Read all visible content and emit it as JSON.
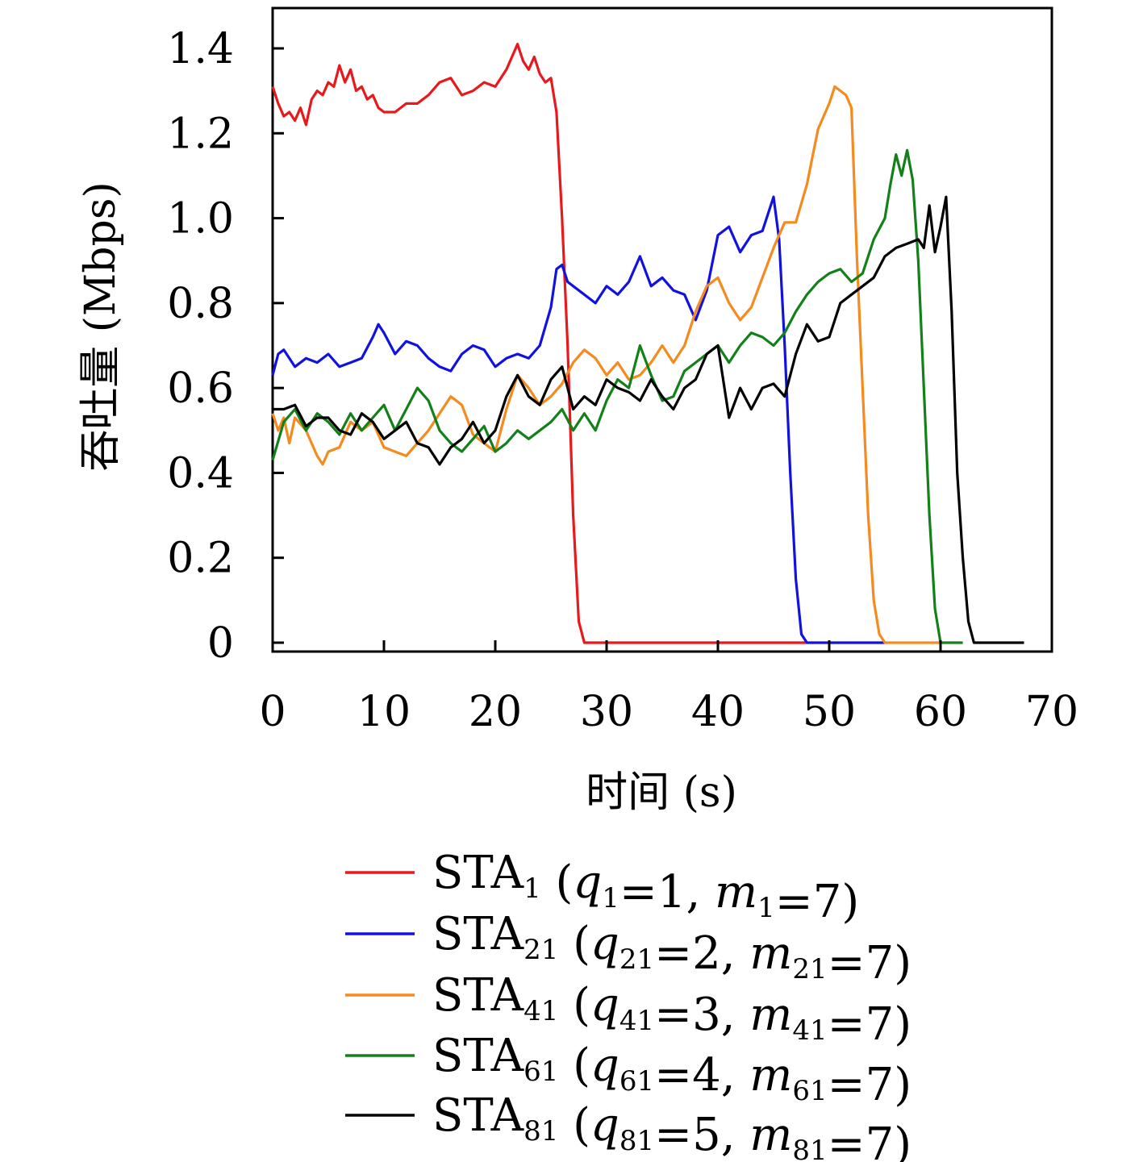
{
  "chart_data": {
    "type": "line",
    "xlabel": "时间 (s)",
    "ylabel": "吞吐量 (Mbps)",
    "xlim": [
      0,
      70
    ],
    "ylim": [
      0,
      1.5
    ],
    "xticks": [
      "0",
      "10",
      "20",
      "30",
      "40",
      "50",
      "60",
      "70"
    ],
    "yticks": [
      "0",
      "0.2",
      "0.4",
      "0.6",
      "0.8",
      "1.0",
      "1.2",
      "1.4"
    ],
    "grid": false,
    "legend_position": "bottom",
    "series": [
      {
        "name": "STA1 (q1=1, m1=7)",
        "legend": {
          "base": "STA",
          "sub": "1",
          "q": "q",
          "qsub": "1",
          "qval": "=1, ",
          "m": "m",
          "msub": "1",
          "mval": "=7)"
        },
        "color": "#e8191c",
        "x": [
          0,
          0.5,
          1,
          1.5,
          2,
          2.5,
          3,
          3.5,
          4,
          4.5,
          5,
          5.5,
          6,
          6.5,
          7,
          7.5,
          8,
          8.5,
          9,
          9.5,
          10,
          11,
          12,
          13,
          14,
          15,
          16,
          17,
          18,
          19,
          20,
          21,
          21.5,
          22,
          22.5,
          23,
          23.5,
          24,
          24.5,
          25,
          25.5,
          26,
          26.5,
          27,
          27.5,
          28,
          30,
          40,
          48
        ],
        "y": [
          1.31,
          1.27,
          1.24,
          1.25,
          1.23,
          1.26,
          1.22,
          1.28,
          1.3,
          1.29,
          1.32,
          1.31,
          1.36,
          1.32,
          1.35,
          1.3,
          1.31,
          1.28,
          1.29,
          1.26,
          1.25,
          1.25,
          1.27,
          1.27,
          1.29,
          1.32,
          1.33,
          1.29,
          1.3,
          1.32,
          1.31,
          1.35,
          1.38,
          1.41,
          1.37,
          1.35,
          1.38,
          1.34,
          1.32,
          1.33,
          1.25,
          1.0,
          0.7,
          0.3,
          0.05,
          0.0,
          0.0,
          0.0,
          0.0
        ]
      },
      {
        "name": "STA21 (q21=2, m21=7)",
        "legend": {
          "base": "STA",
          "sub": "21",
          "q": "q",
          "qsub": "21",
          "qval": "=2, ",
          "m": "m",
          "msub": "21",
          "mval": "=7)"
        },
        "color": "#1212e0",
        "x": [
          0,
          0.5,
          1,
          2,
          3,
          4,
          5,
          6,
          7,
          8,
          9,
          9.5,
          10,
          11,
          12,
          13,
          14,
          15,
          16,
          17,
          18,
          19,
          20,
          21,
          22,
          23,
          24,
          25,
          25.5,
          26,
          26.5,
          27,
          28,
          29,
          30,
          31,
          32,
          33,
          34,
          35,
          36,
          37,
          38,
          39,
          40,
          41,
          42,
          43,
          44,
          45,
          45.5,
          46,
          46.5,
          47,
          47.5,
          48,
          50,
          55
        ],
        "y": [
          0.63,
          0.68,
          0.69,
          0.65,
          0.67,
          0.66,
          0.68,
          0.65,
          0.66,
          0.67,
          0.72,
          0.75,
          0.73,
          0.68,
          0.71,
          0.7,
          0.67,
          0.65,
          0.64,
          0.68,
          0.7,
          0.69,
          0.65,
          0.67,
          0.68,
          0.67,
          0.7,
          0.79,
          0.88,
          0.89,
          0.85,
          0.84,
          0.82,
          0.8,
          0.84,
          0.82,
          0.85,
          0.91,
          0.84,
          0.86,
          0.83,
          0.82,
          0.76,
          0.83,
          0.96,
          0.98,
          0.92,
          0.96,
          0.97,
          1.05,
          0.95,
          0.7,
          0.4,
          0.15,
          0.02,
          0.0,
          0.0,
          0.0
        ]
      },
      {
        "name": "STA41 (q41=3, m41=7)",
        "legend": {
          "base": "STA",
          "sub": "41",
          "q": "q",
          "qsub": "41",
          "qval": "=3, ",
          "m": "m",
          "msub": "41",
          "mval": "=7)"
        },
        "color": "#f58a1f",
        "x": [
          0,
          0.5,
          1,
          1.5,
          2,
          3,
          4,
          4.5,
          5,
          6,
          7,
          8,
          9,
          10,
          11,
          12,
          13,
          14,
          15,
          16,
          17,
          18,
          19,
          20,
          21,
          22,
          23,
          24,
          25,
          26,
          27,
          28,
          29,
          30,
          31,
          32,
          33,
          34,
          35,
          36,
          37,
          38,
          39,
          40,
          41,
          42,
          43,
          44,
          45,
          46,
          47,
          48,
          49,
          50,
          50.5,
          51,
          51.5,
          52,
          52.5,
          53,
          53.5,
          54,
          54.5,
          55,
          55.5,
          56,
          58,
          60
        ],
        "y": [
          0.54,
          0.5,
          0.53,
          0.47,
          0.53,
          0.5,
          0.44,
          0.42,
          0.45,
          0.46,
          0.52,
          0.5,
          0.52,
          0.46,
          0.45,
          0.44,
          0.47,
          0.5,
          0.54,
          0.58,
          0.56,
          0.49,
          0.47,
          0.45,
          0.55,
          0.63,
          0.6,
          0.56,
          0.58,
          0.61,
          0.66,
          0.69,
          0.67,
          0.63,
          0.66,
          0.62,
          0.63,
          0.66,
          0.7,
          0.66,
          0.7,
          0.78,
          0.84,
          0.86,
          0.8,
          0.76,
          0.79,
          0.86,
          0.93,
          0.99,
          0.99,
          1.08,
          1.21,
          1.27,
          1.31,
          1.3,
          1.29,
          1.26,
          0.9,
          0.6,
          0.3,
          0.1,
          0.02,
          0.0,
          0.0,
          0.0,
          0.0,
          0.0
        ]
      },
      {
        "name": "STA61 (q61=4, m61=7)",
        "legend": {
          "base": "STA",
          "sub": "61",
          "q": "q",
          "qsub": "61",
          "qval": "=4, ",
          "m": "m",
          "msub": "61",
          "mval": "=7)"
        },
        "color": "#13801a",
        "x": [
          0,
          1,
          2,
          3,
          4,
          5,
          6,
          7,
          8,
          9,
          10,
          11,
          12,
          13,
          14,
          15,
          16,
          17,
          18,
          19,
          20,
          21,
          22,
          23,
          24,
          25,
          26,
          27,
          28,
          29,
          30,
          31,
          32,
          33,
          34,
          35,
          36,
          37,
          38,
          39,
          40,
          41,
          42,
          43,
          44,
          45,
          46,
          47,
          48,
          49,
          50,
          51,
          52,
          53,
          54,
          55,
          55.5,
          56,
          56.5,
          57,
          57.5,
          58,
          58.5,
          59,
          59.5,
          60,
          62
        ],
        "y": [
          0.43,
          0.52,
          0.55,
          0.5,
          0.54,
          0.52,
          0.49,
          0.54,
          0.5,
          0.53,
          0.56,
          0.5,
          0.55,
          0.6,
          0.57,
          0.5,
          0.47,
          0.45,
          0.48,
          0.51,
          0.45,
          0.47,
          0.5,
          0.48,
          0.5,
          0.52,
          0.55,
          0.5,
          0.54,
          0.5,
          0.57,
          0.62,
          0.6,
          0.7,
          0.63,
          0.57,
          0.58,
          0.64,
          0.66,
          0.68,
          0.7,
          0.66,
          0.7,
          0.73,
          0.72,
          0.7,
          0.73,
          0.78,
          0.82,
          0.85,
          0.87,
          0.88,
          0.85,
          0.87,
          0.95,
          1.0,
          1.08,
          1.15,
          1.1,
          1.16,
          1.09,
          0.9,
          0.6,
          0.3,
          0.08,
          0.0,
          0.0
        ]
      },
      {
        "name": "STA81 (q81=5, m81=7)",
        "legend": {
          "base": "STA",
          "sub": "81",
          "q": "q",
          "qsub": "81",
          "qval": "=5, ",
          "m": "m",
          "msub": "81",
          "mval": "=7)"
        },
        "color": "#000000",
        "x": [
          0,
          1,
          2,
          3,
          4,
          5,
          6,
          7,
          8,
          9,
          10,
          11,
          12,
          13,
          14,
          15,
          16,
          17,
          18,
          19,
          20,
          21,
          22,
          23,
          24,
          25,
          26,
          27,
          28,
          29,
          30,
          31,
          32,
          33,
          34,
          35,
          36,
          37,
          38,
          39,
          40,
          41,
          42,
          43,
          44,
          45,
          46,
          47,
          48,
          49,
          50,
          51,
          52,
          53,
          54,
          55,
          56,
          57,
          58,
          58.5,
          59,
          59.5,
          60,
          60.5,
          61,
          61.5,
          62,
          62.5,
          63,
          65,
          67.5
        ],
        "y": [
          0.55,
          0.55,
          0.56,
          0.51,
          0.53,
          0.53,
          0.5,
          0.49,
          0.54,
          0.52,
          0.48,
          0.5,
          0.52,
          0.47,
          0.46,
          0.42,
          0.46,
          0.48,
          0.52,
          0.47,
          0.5,
          0.58,
          0.63,
          0.58,
          0.56,
          0.62,
          0.65,
          0.55,
          0.58,
          0.56,
          0.62,
          0.6,
          0.59,
          0.57,
          0.62,
          0.58,
          0.55,
          0.6,
          0.62,
          0.68,
          0.7,
          0.53,
          0.6,
          0.55,
          0.6,
          0.61,
          0.58,
          0.68,
          0.75,
          0.71,
          0.72,
          0.8,
          0.82,
          0.84,
          0.86,
          0.91,
          0.93,
          0.94,
          0.95,
          0.93,
          1.03,
          0.92,
          0.98,
          1.05,
          0.78,
          0.4,
          0.2,
          0.05,
          0.0,
          0.0,
          0.0
        ]
      }
    ]
  }
}
